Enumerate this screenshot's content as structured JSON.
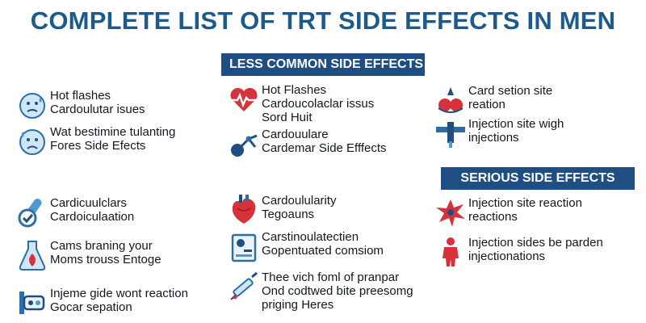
{
  "title": "COMPLETE LIST OF TRT SIDE EFFECTS IN MEN",
  "sections": {
    "less_common": "LESS COMMON SIDE EFFECTS",
    "serious": "SERIOUS SIDE EFFECTS"
  },
  "items": {
    "i1": {
      "icon": "worried-face-icon",
      "lines": [
        "Hot flashes",
        "Cardoulutar isues"
      ]
    },
    "i2": {
      "icon": "sad-face-icon",
      "lines": [
        "Wat bestimine tulanting",
        "Fores Side Efects"
      ]
    },
    "i3": {
      "icon": "heartbeat-icon",
      "lines": [
        "Hot Flashes",
        "Cardoucolaclar issus",
        "Sord Huit"
      ]
    },
    "i4": {
      "icon": "molecule-icon",
      "lines": [
        "Cardouulare",
        "Cardemar Side Efffects"
      ]
    },
    "i5": {
      "icon": "injection-site-icon",
      "lines": [
        "Card setion site",
        "reation"
      ]
    },
    "i6": {
      "icon": "syringe-icon",
      "lines": [
        "Injection site wigh",
        "injections"
      ]
    },
    "i7": {
      "icon": "pill-check-icon",
      "lines": [
        "Cardicuulclars",
        "Cardoiculaation"
      ]
    },
    "i8": {
      "icon": "anatomical-heart-icon",
      "lines": [
        "Cardoulularity",
        "Tegoauns"
      ]
    },
    "i9": {
      "icon": "reaction-burst-icon",
      "lines": [
        "Injection site reaction",
        "reactions"
      ]
    },
    "i10": {
      "icon": "flask-icon",
      "lines": [
        "Cams braning your",
        "Moms trouss Entoge"
      ]
    },
    "i11": {
      "icon": "clipboard-icon",
      "lines": [
        "Carstinoulatectien",
        "Gopentuated comsiom"
      ]
    },
    "i12": {
      "icon": "person-icon",
      "lines": [
        "Injection sides be parden",
        "injectionations"
      ]
    },
    "i13": {
      "icon": "device-icon",
      "lines": [
        "Injeme gide wont reaction",
        "Gocar sepation"
      ]
    },
    "i14": {
      "icon": "injection-pen-icon",
      "lines": [
        "Thee vich foml of pranpar",
        "Ond codtwed bite preesomg",
        "priging Heres"
      ]
    }
  }
}
